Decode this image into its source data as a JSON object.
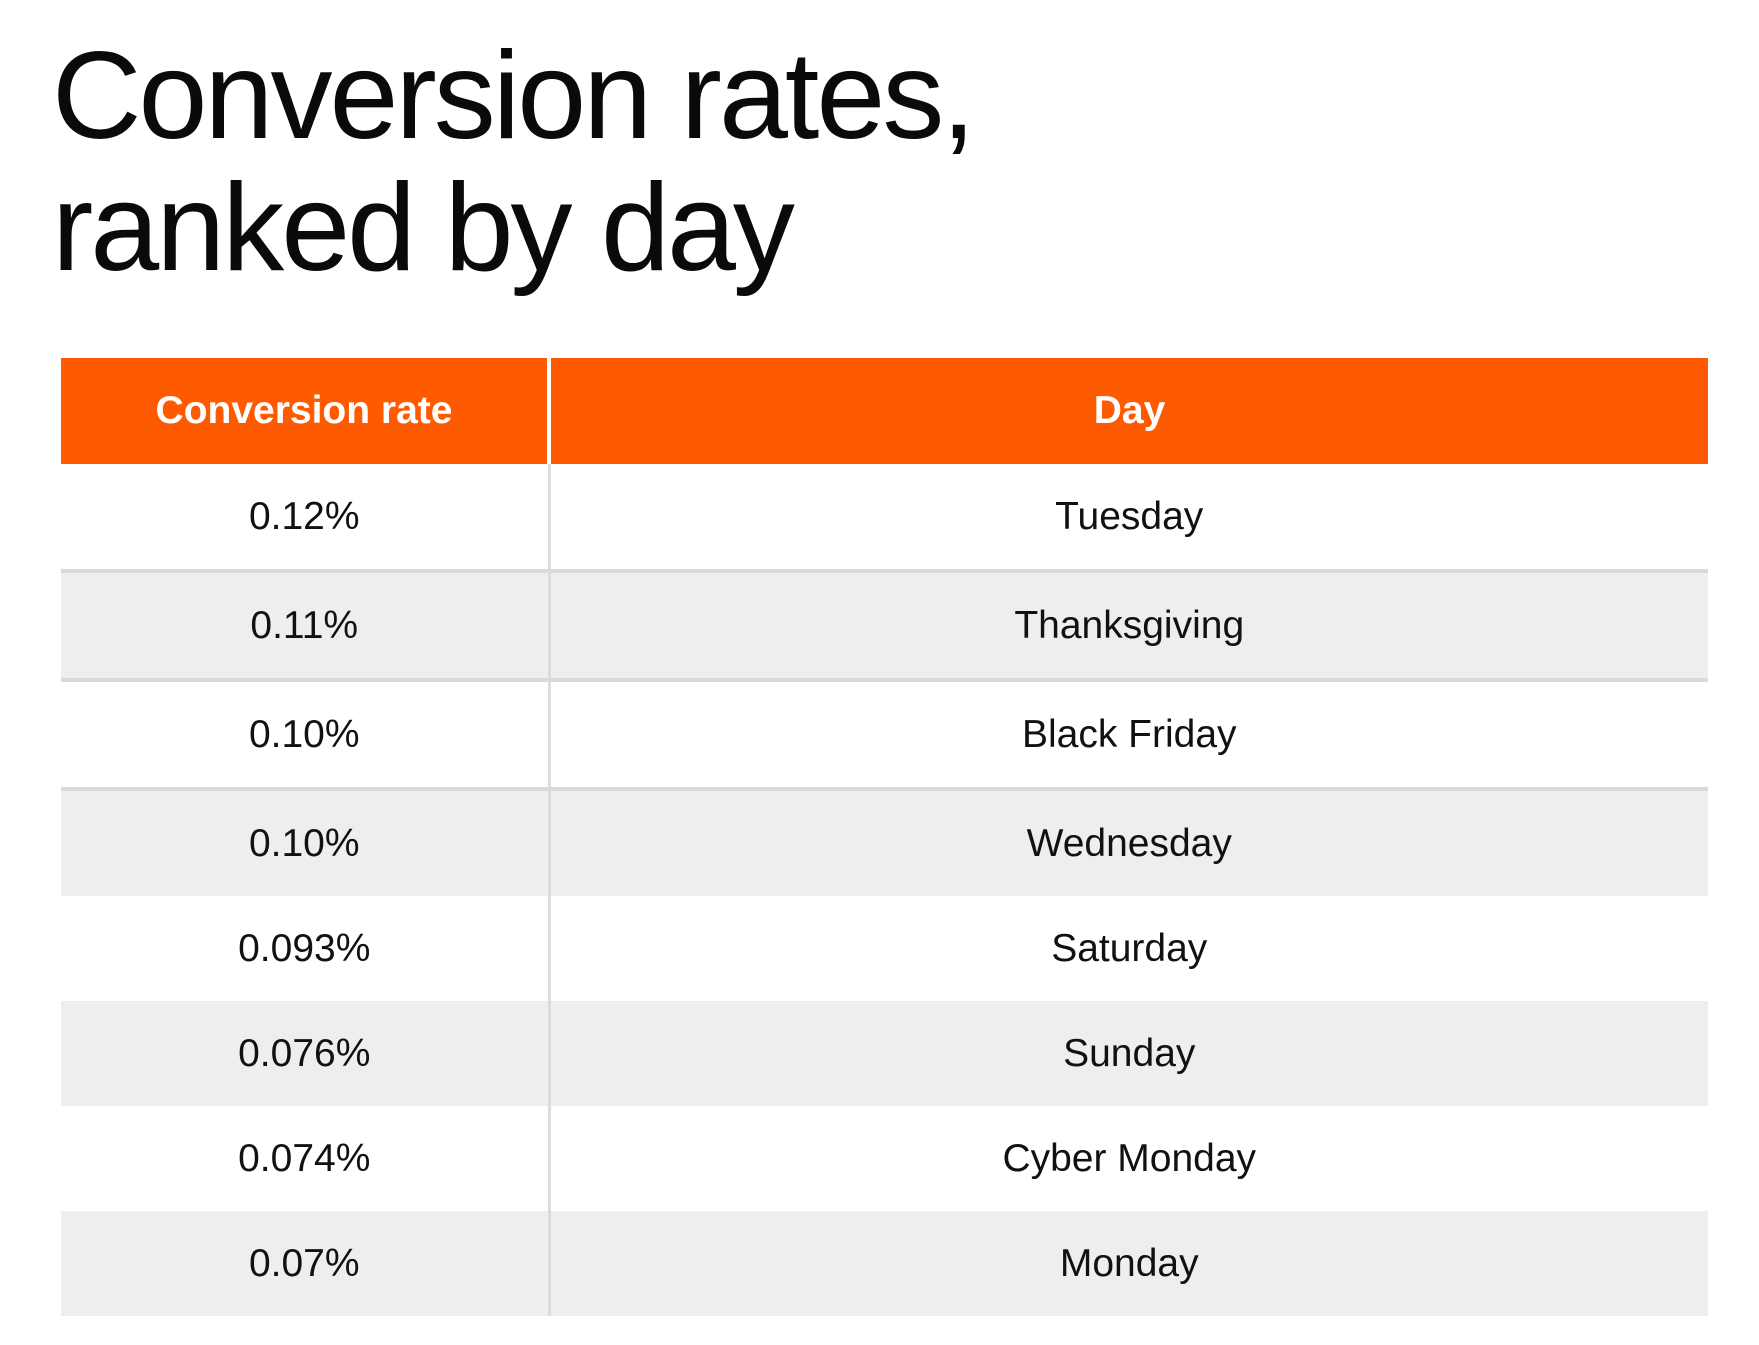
{
  "title_lines": [
    "Conversion rates,",
    "ranked by day"
  ],
  "chart_data": {
    "type": "table",
    "title": "Conversion rates, ranked by day",
    "columns": [
      "Conversion rate",
      "Day"
    ],
    "rows": [
      [
        "0.12%",
        "Tuesday"
      ],
      [
        "0.11%",
        "Thanksgiving"
      ],
      [
        "0.10%",
        "Black Friday"
      ],
      [
        "0.10%",
        "Wednesday"
      ],
      [
        "0.093%",
        "Saturday"
      ],
      [
        "0.076%",
        "Sunday"
      ],
      [
        "0.074%",
        "Cyber Monday"
      ],
      [
        "0.07%",
        "Monday"
      ]
    ],
    "values": [
      0.12,
      0.11,
      0.1,
      0.1,
      0.093,
      0.076,
      0.074,
      0.07
    ],
    "unit": "%"
  },
  "colors": {
    "header_bg": "#fe5a00",
    "header_text": "#ffffff",
    "stripe": "#eeeeee"
  }
}
